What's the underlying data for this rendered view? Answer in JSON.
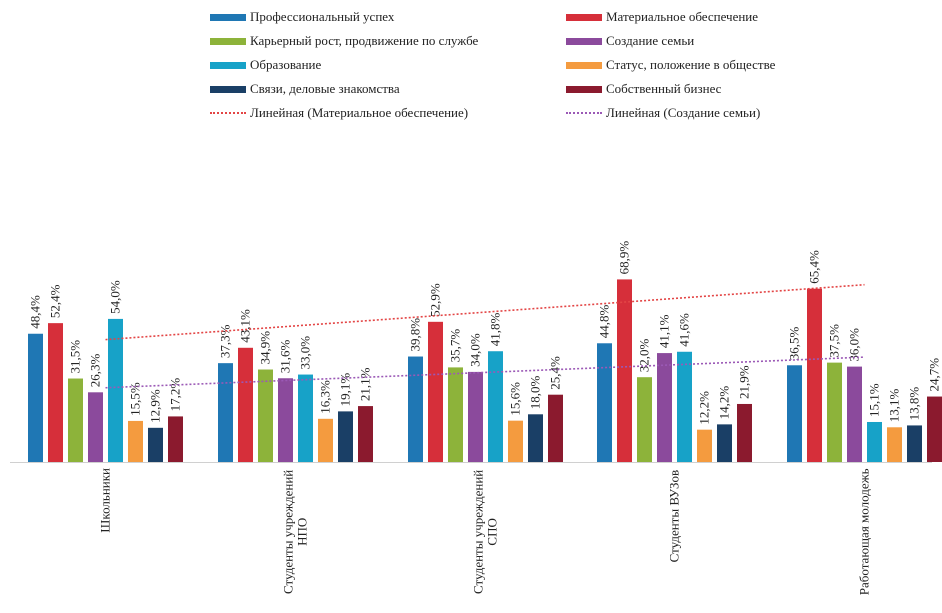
{
  "chart_data": {
    "type": "bar",
    "categories": [
      "Школьники",
      [
        "Студенты учреждений",
        "НПО"
      ],
      [
        "Студенты учреждений",
        "СПО"
      ],
      "Студенты ВУЗов",
      "Работающая молодежь"
    ],
    "series": [
      {
        "name": "Профессиональный успех",
        "color": "#1f77b4",
        "values": [
          48.4,
          37.3,
          39.8,
          44.8,
          36.5
        ]
      },
      {
        "name": "Материальное обеспечение",
        "color": "#d62f3a",
        "values": [
          52.4,
          43.1,
          52.9,
          68.9,
          65.4
        ]
      },
      {
        "name": "Карьерный рост, продвижение по службе",
        "color": "#8db33a",
        "values": [
          31.5,
          34.9,
          35.7,
          32.0,
          37.5
        ]
      },
      {
        "name": "Создание семьи",
        "color": "#8b4a9c",
        "values": [
          26.3,
          31.6,
          34.0,
          41.1,
          36.0
        ]
      },
      {
        "name": "Образование",
        "color": "#17a2c8",
        "values": [
          54.0,
          33.0,
          41.8,
          41.6,
          15.1
        ]
      },
      {
        "name": "Статус, положение в обществе",
        "color": "#f49b3f",
        "values": [
          15.5,
          16.3,
          15.6,
          12.2,
          13.1
        ]
      },
      {
        "name": "Связи, деловые знакомства",
        "color": "#1a3f66",
        "values": [
          12.9,
          19.1,
          18.0,
          14.2,
          13.8
        ]
      },
      {
        "name": "Собственный бизнес",
        "color": "#8b1a2e",
        "values": [
          17.2,
          21.1,
          25.4,
          21.9,
          24.7
        ]
      }
    ],
    "trendlines": [
      {
        "name": "Линейная (Материальное обеспечение)",
        "series": "Материальное обеспечение",
        "color": "#e34545"
      },
      {
        "name": "Линейная (Создание семьи)",
        "series": "Создание семьи",
        "color": "#9b59b6"
      }
    ],
    "data_label_format": "%",
    "ylim": [
      0,
      80
    ],
    "legend": "top",
    "grid": false
  }
}
